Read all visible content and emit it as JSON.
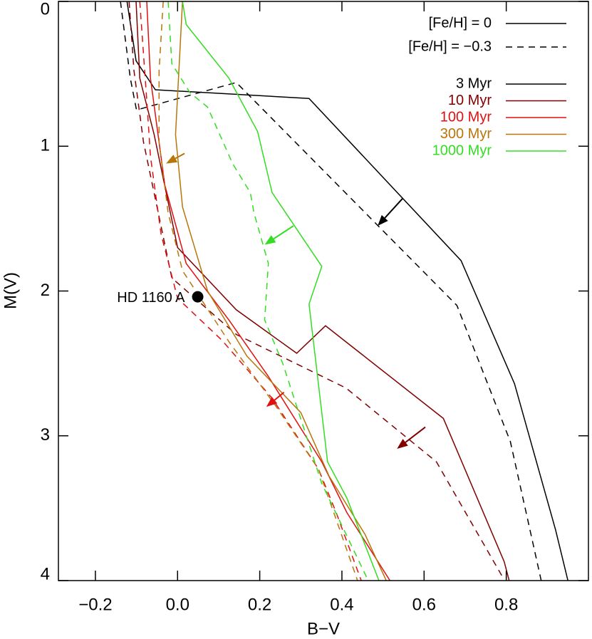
{
  "chart_data": {
    "type": "line",
    "x_label": "B−V",
    "y_label": "M(V)",
    "xlim": [
      -0.29,
      1.0
    ],
    "ylim": [
      0,
      4
    ],
    "invert_y": true,
    "xticks": [
      {
        "value": -0.2,
        "label": "−0.2"
      },
      {
        "value": 0,
        "label": "0.0"
      },
      0.2,
      0.4,
      0.6,
      0.8
    ],
    "yticks": [
      0,
      1,
      2,
      3,
      4
    ],
    "linestyles": [
      {
        "label": "[Fe/H] = 0",
        "dash": "solid"
      },
      {
        "label": "[Fe/H] = −0.3",
        "dash": "dashed"
      }
    ],
    "series": [
      {
        "name": "3 Myr",
        "color": "#000000",
        "tracks": [
          {
            "x": [
              -0.123,
              -0.101,
              -0.054,
              0.32,
              0.69,
              0.82,
              0.92,
              0.95
            ],
            "y": [
              0,
              0.41,
              0.61,
              0.67,
              1.79,
              2.64,
              3.65,
              4.0
            ]
          },
          {
            "x": [
              -0.139,
              -0.115,
              -0.1,
              0.143,
              0.68,
              0.81,
              0.86,
              0.885
            ],
            "y": [
              0,
              0.53,
              0.75,
              0.56,
              2.1,
              3.04,
              3.68,
              4.0
            ]
          }
        ]
      },
      {
        "name": "10 Myr",
        "color": "#800000",
        "tracks": [
          {
            "x": [
              -0.101,
              -0.092,
              -0.057,
              0.0,
              0.143,
              0.29,
              0.36,
              0.647,
              0.795,
              0.807
            ],
            "y": [
              0,
              0.53,
              0.92,
              1.7,
              2.13,
              2.43,
              2.24,
              2.88,
              3.87,
              4.0
            ]
          },
          {
            "x": [
              -0.118,
              -0.106,
              -0.083,
              -0.014,
              0.143,
              0.41,
              0.63,
              0.79
            ],
            "y": [
              0,
              0.48,
              0.97,
              1.91,
              2.3,
              2.67,
              3.18,
              3.97
            ]
          }
        ]
      },
      {
        "name": "100 Myr",
        "color": "#e01010",
        "tracks": [
          {
            "x": [
              -0.075,
              -0.066,
              -0.031,
              0.021,
              0.125,
              0.221,
              0.351,
              0.412,
              0.517
            ],
            "y": [
              0,
              0.53,
              1.27,
              1.81,
              2.2,
              2.59,
              3.18,
              3.53,
              4.0
            ]
          },
          {
            "x": [
              -0.092,
              -0.075,
              -0.066,
              -0.04,
              0.0,
              0.108,
              0.23,
              0.343,
              0.386,
              0.447
            ],
            "y": [
              0,
              0.68,
              1.07,
              1.61,
              2.05,
              2.34,
              2.74,
              3.23,
              3.53,
              4.0
            ]
          }
        ]
      },
      {
        "name": "300 Myr",
        "color": "#b8760a",
        "tracks": [
          {
            "x": [
              0.012,
              -0.005,
              0.012,
              0.073,
              0.169,
              0.3,
              0.369,
              0.456,
              0.508
            ],
            "y": [
              0,
              0.92,
              1.42,
              2.0,
              2.45,
              2.84,
              3.28,
              3.68,
              4.0
            ]
          },
          {
            "x": [
              -0.035,
              -0.045,
              -0.045,
              -0.023,
              0.012,
              0.125,
              0.238,
              0.343,
              0.438
            ],
            "y": [
              0,
              0.48,
              0.97,
              1.46,
              1.86,
              2.35,
              2.79,
              3.23,
              4.0
            ]
          }
        ]
      },
      {
        "name": "1000 Myr",
        "color": "#33dd22",
        "tracks": [
          {
            "x": [
              0.012,
              0.021,
              0.125,
              0.195,
              0.23,
              0.351,
              0.32,
              0.365,
              0.412,
              0.49
            ],
            "y": [
              0,
              0.16,
              0.53,
              0.9,
              1.32,
              1.83,
              2.09,
              3.18,
              3.43,
              4.0
            ]
          },
          {
            "x": [
              -0.023,
              -0.014,
              0.03,
              0.073,
              0.134,
              0.177,
              0.186,
              0.221,
              0.212,
              0.256,
              0.351,
              0.464
            ],
            "y": [
              0,
              0.43,
              0.63,
              0.73,
              1.12,
              1.32,
              1.46,
              1.81,
              2.2,
              2.5,
              3.33,
              4.0
            ]
          }
        ]
      }
    ],
    "arrows": [
      {
        "color": "#000000",
        "x": [
          0.548,
          0.487
        ],
        "y": [
          1.36,
          1.55
        ]
      },
      {
        "color": "#800000",
        "x": [
          0.603,
          0.534
        ],
        "y": [
          2.94,
          3.09
        ]
      },
      {
        "color": "#e01010",
        "x": [
          0.259,
          0.216
        ],
        "y": [
          2.7,
          2.8
        ]
      },
      {
        "color": "#b8760a",
        "x": [
          0.017,
          -0.028
        ],
        "y": [
          1.05,
          1.12
        ]
      },
      {
        "color": "#33dd22",
        "x": [
          0.282,
          0.212
        ],
        "y": [
          1.55,
          1.68
        ]
      }
    ],
    "points": [
      {
        "name": "HD 1160 A",
        "x": 0.049,
        "y": 2.04,
        "color": "#000000"
      }
    ]
  }
}
